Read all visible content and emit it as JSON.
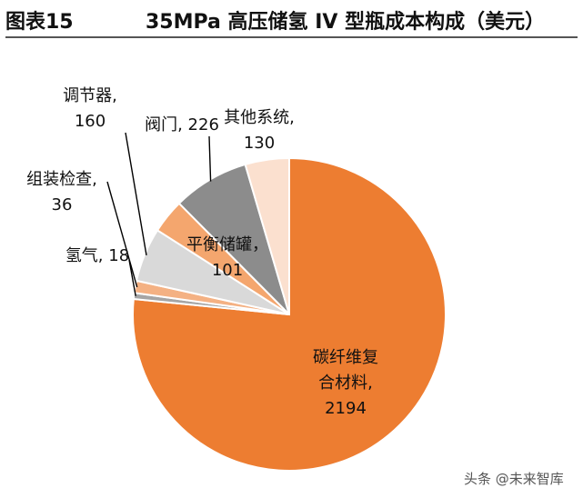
{
  "header": {
    "figure_no": "图表15",
    "title": "35MPa 高压储氢 IV 型瓶成本构成（美元）"
  },
  "chart_data": {
    "type": "pie",
    "title": "35MPa 高压储氢 IV 型瓶成本构成（美元）",
    "start": "12 o'clock, clockwise",
    "slices": [
      {
        "label": "碳纤维复合材料",
        "label_lines": [
          "碳纤维复",
          "合材料,",
          "2194"
        ],
        "value": 2194,
        "color": "#ed7d31"
      },
      {
        "label": "氢气",
        "label_lines": [
          "氢气, 18"
        ],
        "value": 18,
        "color": "#a5a5a5"
      },
      {
        "label": "组装检查",
        "label_lines": [
          "组装检查,",
          "36"
        ],
        "value": 36,
        "color": "#f4b183"
      },
      {
        "label": "调节器",
        "label_lines": [
          "调节器,",
          "160"
        ],
        "value": 160,
        "color": "#d9d9d9"
      },
      {
        "label": "平衡储罐",
        "label_lines": [
          "平衡储罐，",
          "101"
        ],
        "value": 101,
        "color": "#f4a66e"
      },
      {
        "label": "阀门",
        "label_lines": [
          "阀门, 226"
        ],
        "value": 226,
        "color": "#8c8c8c"
      },
      {
        "label": "其他系统",
        "label_lines": [
          "其他系统,",
          "130"
        ],
        "value": 130,
        "color": "#fbe0cf"
      }
    ]
  },
  "watermark": "头条 @未来智库"
}
